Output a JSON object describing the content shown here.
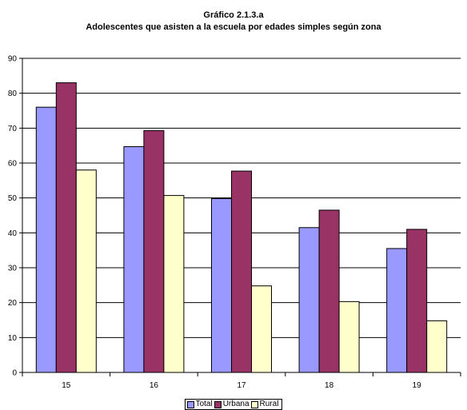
{
  "chart_data": {
    "type": "bar",
    "title": "Gráfico 2.1.3.a",
    "subtitle": "Adolescentes que asisten a la escuela por edades simples según zona",
    "categories": [
      "15",
      "16",
      "17",
      "18",
      "19"
    ],
    "series": [
      {
        "name": "Total",
        "color": "#9999ff",
        "values": [
          76,
          64.7,
          49.8,
          41.5,
          35.5
        ]
      },
      {
        "name": "Urbana",
        "color": "#993366",
        "values": [
          83,
          69.3,
          57.7,
          46.5,
          41
        ]
      },
      {
        "name": "Rural",
        "color": "#ffffcc",
        "values": [
          58,
          50.7,
          24.8,
          20.3,
          14.8
        ]
      }
    ],
    "ylim": [
      0,
      90
    ],
    "yticks": [
      0,
      10,
      20,
      30,
      40,
      50,
      60,
      70,
      80,
      90
    ],
    "grid": true,
    "legend_position": "bottom"
  }
}
